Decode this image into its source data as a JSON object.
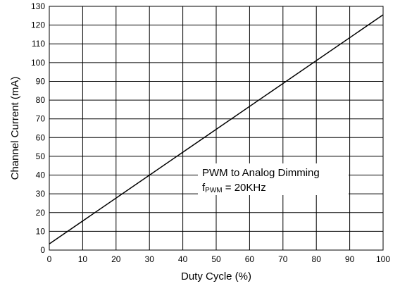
{
  "chart_data": {
    "type": "line",
    "title": "",
    "xlabel": "Duty Cycle (%)",
    "ylabel": "Channel Current (mA)",
    "xlim": [
      0,
      100
    ],
    "ylim": [
      0,
      130
    ],
    "x_ticks": [
      0,
      10,
      20,
      30,
      40,
      50,
      60,
      70,
      80,
      90,
      100
    ],
    "y_ticks": [
      0,
      10,
      20,
      30,
      40,
      50,
      60,
      70,
      80,
      90,
      100,
      110,
      120,
      130
    ],
    "grid": true,
    "series": [
      {
        "x": [
          0,
          100
        ],
        "y": [
          3.3,
          125.5
        ]
      }
    ],
    "annotation": {
      "line1": "PWM to Analog Dimming",
      "line2_prefix": "f",
      "line2_subscript": "PWM",
      "line2_suffix": " = 20KHz"
    }
  }
}
